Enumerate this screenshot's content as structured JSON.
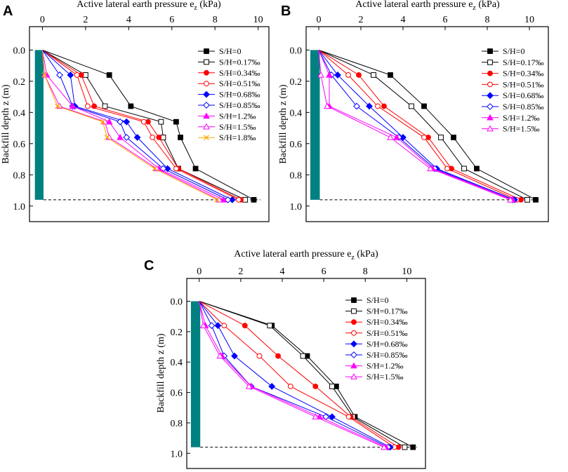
{
  "figure": {
    "panel_letters": [
      "A",
      "B",
      "C"
    ]
  },
  "chart_data": [
    {
      "type": "line",
      "panel": "A",
      "title": "",
      "xlabel_main": "Active lateral earth pressure e",
      "xlabel_sub": "z",
      "xlabel_unit": " (kPa)",
      "ylabel": "Backfill depth z (m)",
      "xlim": [
        -0.6,
        10.5
      ],
      "ylim": [
        -0.15,
        1.1
      ],
      "xticks": [
        0,
        2,
        4,
        6,
        8,
        10
      ],
      "xtick_labels": [
        "0",
        "2",
        "4",
        "6",
        "8",
        "10"
      ],
      "yticks": [
        0.0,
        0.2,
        0.4,
        0.6,
        0.8,
        1.0
      ],
      "ytick_labels": [
        "0.0",
        "0.2",
        "0.4",
        "0.6",
        "0.8",
        "1.0"
      ],
      "x_axis_position": "top",
      "y_inverted": true,
      "wall": {
        "x_from": -0.35,
        "x_to": 0.05,
        "depth": 0.96,
        "color": "#008080"
      },
      "baseline_depth": 0.96,
      "legend_position": "top-right",
      "series": [
        {
          "name": "S/H=0",
          "marker": "square-filled",
          "color": "#000000",
          "x": [
            0,
            3.1,
            4.1,
            6.2,
            6.4,
            7.1,
            9.8
          ],
          "y": [
            0,
            0.16,
            0.36,
            0.46,
            0.56,
            0.76,
            0.96
          ]
        },
        {
          "name": "S/H=0.17‰",
          "marker": "square-open",
          "color": "#000000",
          "x": [
            0,
            2.0,
            2.9,
            5.5,
            5.6,
            6.3,
            9.4
          ],
          "y": [
            0,
            0.16,
            0.36,
            0.46,
            0.56,
            0.76,
            0.96
          ]
        },
        {
          "name": "S/H=0.34‰",
          "marker": "circle-filled",
          "color": "#ff0000",
          "x": [
            0,
            1.8,
            2.4,
            4.9,
            5.4,
            6.3,
            9.2
          ],
          "y": [
            0,
            0.16,
            0.36,
            0.46,
            0.56,
            0.76,
            0.96
          ]
        },
        {
          "name": "S/H=0.51‰",
          "marker": "circle-open",
          "color": "#ff0000",
          "x": [
            0,
            1.6,
            2.1,
            4.7,
            5.1,
            6.2,
            9.1
          ],
          "y": [
            0,
            0.16,
            0.36,
            0.46,
            0.56,
            0.76,
            0.96
          ]
        },
        {
          "name": "S/H=0.68‰",
          "marker": "diamond-filled",
          "color": "#0000ff",
          "x": [
            0,
            1.3,
            1.5,
            3.9,
            4.4,
            5.8,
            8.8
          ],
          "y": [
            0,
            0.16,
            0.36,
            0.46,
            0.56,
            0.76,
            0.96
          ]
        },
        {
          "name": "S/H=0.85‰",
          "marker": "diamond-open",
          "color": "#0000ff",
          "x": [
            0,
            0.8,
            1.4,
            3.6,
            3.9,
            5.6,
            8.6
          ],
          "y": [
            0,
            0.16,
            0.36,
            0.46,
            0.56,
            0.76,
            0.96
          ]
        },
        {
          "name": "S/H=1.2‰",
          "marker": "triangle-filled",
          "color": "#ff00ff",
          "x": [
            0,
            0.2,
            1.4,
            3.1,
            3.6,
            5.4,
            8.4
          ],
          "y": [
            0,
            0.16,
            0.36,
            0.46,
            0.56,
            0.76,
            0.96
          ]
        },
        {
          "name": "S/H=1.5‰",
          "marker": "triangle-open",
          "color": "#ff00ff",
          "x": [
            0,
            0.1,
            0.8,
            2.9,
            3.1,
            5.3,
            8.2
          ],
          "y": [
            0,
            0.16,
            0.36,
            0.46,
            0.56,
            0.76,
            0.96
          ]
        },
        {
          "name": "S/H=1.8‰",
          "marker": "cross",
          "color": "#ffa500",
          "x": [
            0,
            0.1,
            0.7,
            2.8,
            3.0,
            5.2,
            8.1
          ],
          "y": [
            0,
            0.16,
            0.36,
            0.46,
            0.56,
            0.76,
            0.96
          ]
        }
      ]
    },
    {
      "type": "line",
      "panel": "B",
      "title": "",
      "xlabel_main": "Active lateral earth pressure e",
      "xlabel_sub": "z",
      "xlabel_unit": " (kPa)",
      "ylabel": "Backfill depth z (m)",
      "xlim": [
        -0.6,
        10.9
      ],
      "ylim": [
        -0.15,
        1.1
      ],
      "xticks": [
        0,
        2,
        4,
        6,
        8,
        10
      ],
      "xtick_labels": [
        "0",
        "2",
        "4",
        "6",
        "8",
        "10"
      ],
      "yticks": [
        0.0,
        0.2,
        0.4,
        0.6,
        0.8,
        1.0
      ],
      "ytick_labels": [
        "0.0",
        "0.2",
        "0.4",
        "0.6",
        "0.8",
        "1.0"
      ],
      "x_axis_position": "top",
      "y_inverted": true,
      "wall": {
        "x_from": -0.4,
        "x_to": 0.05,
        "depth": 0.96,
        "color": "#008080"
      },
      "baseline_depth": 0.96,
      "legend_position": "top-right",
      "series": [
        {
          "name": "S/H=0",
          "marker": "square-filled",
          "color": "#000000",
          "x": [
            0,
            3.4,
            5.0,
            6.4,
            7.5,
            10.3
          ],
          "y": [
            0,
            0.16,
            0.36,
            0.56,
            0.76,
            0.96
          ]
        },
        {
          "name": "S/H=0.17‰",
          "marker": "square-open",
          "color": "#000000",
          "x": [
            0,
            2.6,
            4.4,
            5.8,
            6.9,
            9.9
          ],
          "y": [
            0,
            0.16,
            0.36,
            0.56,
            0.76,
            0.96
          ]
        },
        {
          "name": "S/H=0.34‰",
          "marker": "circle-filled",
          "color": "#ff0000",
          "x": [
            0,
            1.9,
            3.1,
            5.2,
            6.3,
            9.6
          ],
          "y": [
            0,
            0.16,
            0.36,
            0.56,
            0.76,
            0.96
          ]
        },
        {
          "name": "S/H=0.51‰",
          "marker": "circle-open",
          "color": "#ff0000",
          "x": [
            0,
            1.4,
            2.8,
            5.0,
            6.1,
            9.4
          ],
          "y": [
            0,
            0.16,
            0.36,
            0.56,
            0.76,
            0.96
          ]
        },
        {
          "name": "S/H=0.68‰",
          "marker": "diamond-filled",
          "color": "#0000ff",
          "x": [
            0,
            0.9,
            2.4,
            4.0,
            5.6,
            9.3
          ],
          "y": [
            0,
            0.16,
            0.36,
            0.56,
            0.76,
            0.96
          ]
        },
        {
          "name": "S/H=0.85‰",
          "marker": "diamond-open",
          "color": "#0000ff",
          "x": [
            0,
            0.6,
            1.8,
            3.8,
            5.5,
            9.2
          ],
          "y": [
            0,
            0.16,
            0.36,
            0.56,
            0.76,
            0.96
          ]
        },
        {
          "name": "S/H=1.2‰",
          "marker": "triangle-filled",
          "color": "#ff00ff",
          "x": [
            0,
            0.5,
            0.5,
            3.7,
            5.4,
            9.2
          ],
          "y": [
            0,
            0.16,
            0.36,
            0.56,
            0.76,
            0.96
          ]
        },
        {
          "name": "S/H=1.5‰",
          "marker": "triangle-open",
          "color": "#ff00ff",
          "x": [
            0,
            0.1,
            0.4,
            3.4,
            5.3,
            9.1
          ],
          "y": [
            0,
            0.16,
            0.36,
            0.56,
            0.76,
            0.96
          ]
        }
      ]
    },
    {
      "type": "line",
      "panel": "C",
      "title": "",
      "xlabel_main": "Active lateral earth pressure e",
      "xlabel_sub": "z",
      "xlabel_unit": " (kPa)",
      "ylabel": "Backfill depth z (m)",
      "xlim": [
        -0.6,
        10.9
      ],
      "ylim": [
        -0.15,
        1.1
      ],
      "xticks": [
        0,
        2,
        4,
        6,
        8,
        10
      ],
      "xtick_labels": [
        "0",
        "2",
        "4",
        "6",
        "8",
        "10"
      ],
      "yticks": [
        0.0,
        0.2,
        0.4,
        0.6,
        0.8,
        1.0
      ],
      "ytick_labels": [
        "0.0",
        "0.2",
        "0.4",
        "0.6",
        "0.8",
        "1.0"
      ],
      "x_axis_position": "top",
      "y_inverted": true,
      "wall": {
        "x_from": -0.4,
        "x_to": 0.05,
        "depth": 0.96,
        "color": "#008080"
      },
      "baseline_depth": 0.96,
      "legend_position": "top-right",
      "series": [
        {
          "name": "S/H=0",
          "marker": "square-filled",
          "color": "#000000",
          "x": [
            0,
            3.5,
            5.2,
            6.6,
            7.5,
            10.3
          ],
          "y": [
            0,
            0.16,
            0.36,
            0.56,
            0.76,
            0.96
          ]
        },
        {
          "name": "S/H=0.17‰",
          "marker": "square-open",
          "color": "#000000",
          "x": [
            0,
            3.4,
            5.0,
            6.4,
            7.4,
            9.9
          ],
          "y": [
            0,
            0.16,
            0.36,
            0.56,
            0.76,
            0.96
          ]
        },
        {
          "name": "S/H=0.34‰",
          "marker": "circle-filled",
          "color": "#ff0000",
          "x": [
            0,
            2.2,
            3.8,
            5.6,
            7.3,
            9.6
          ],
          "y": [
            0,
            0.16,
            0.36,
            0.56,
            0.76,
            0.96
          ]
        },
        {
          "name": "S/H=0.51‰",
          "marker": "circle-open",
          "color": "#ff0000",
          "x": [
            0,
            1.2,
            2.9,
            4.4,
            7.2,
            9.4
          ],
          "y": [
            0,
            0.16,
            0.36,
            0.56,
            0.76,
            0.96
          ]
        },
        {
          "name": "S/H=0.68‰",
          "marker": "diamond-filled",
          "color": "#0000ff",
          "x": [
            0,
            0.9,
            1.7,
            3.5,
            6.4,
            9.2
          ],
          "y": [
            0,
            0.16,
            0.36,
            0.56,
            0.76,
            0.96
          ]
        },
        {
          "name": "S/H=0.85‰",
          "marker": "diamond-open",
          "color": "#0000ff",
          "x": [
            0,
            0.6,
            1.2,
            2.5,
            6.1,
            9.1
          ],
          "y": [
            0,
            0.16,
            0.36,
            0.56,
            0.76,
            0.96
          ]
        },
        {
          "name": "S/H=1.2‰",
          "marker": "triangle-filled",
          "color": "#ff00ff",
          "x": [
            0,
            0.3,
            1.1,
            2.5,
            5.8,
            9.0
          ],
          "y": [
            0,
            0.16,
            0.36,
            0.56,
            0.76,
            0.96
          ]
        },
        {
          "name": "S/H=1.5‰",
          "marker": "triangle-open",
          "color": "#ff00ff",
          "x": [
            0,
            0.2,
            1.0,
            2.4,
            5.6,
            8.9
          ],
          "y": [
            0,
            0.16,
            0.36,
            0.56,
            0.76,
            0.96
          ]
        }
      ]
    }
  ]
}
